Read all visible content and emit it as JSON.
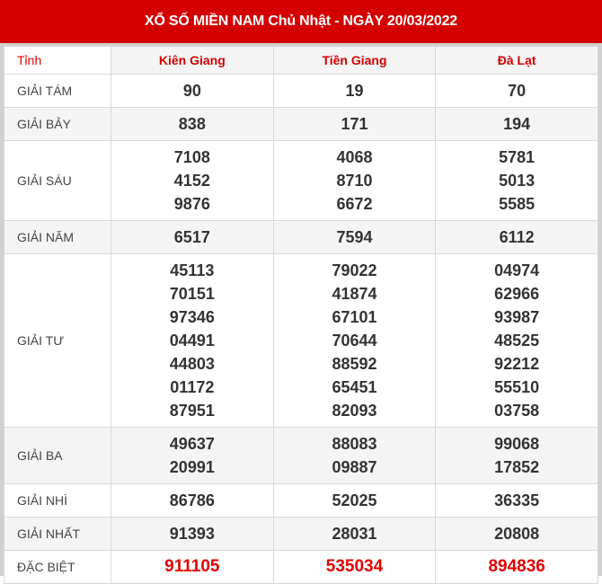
{
  "title": "XỔ SỐ MIỀN NAM Chủ Nhật - NGÀY 20/03/2022",
  "header": {
    "label": "Tỉnh",
    "provinces": [
      "Kiên Giang",
      "Tiền Giang",
      "Đà Lạt"
    ]
  },
  "colors": {
    "brand": "#d40000",
    "special": "#e00000"
  },
  "rows": [
    {
      "label": "GIẢI TÁM",
      "values": [
        [
          "90"
        ],
        [
          "19"
        ],
        [
          "70"
        ]
      ]
    },
    {
      "label": "GIẢI BẢY",
      "values": [
        [
          "838"
        ],
        [
          "171"
        ],
        [
          "194"
        ]
      ]
    },
    {
      "label": "GIẢI SÁU",
      "values": [
        [
          "7108",
          "4152",
          "9876"
        ],
        [
          "4068",
          "8710",
          "6672"
        ],
        [
          "5781",
          "5013",
          "5585"
        ]
      ]
    },
    {
      "label": "GIẢI NĂM",
      "values": [
        [
          "6517"
        ],
        [
          "7594"
        ],
        [
          "6112"
        ]
      ]
    },
    {
      "label": "GIẢI TƯ",
      "values": [
        [
          "45113",
          "70151",
          "97346",
          "04491",
          "44803",
          "01172",
          "87951"
        ],
        [
          "79022",
          "41874",
          "67101",
          "70644",
          "88592",
          "65451",
          "82093"
        ],
        [
          "04974",
          "62966",
          "93987",
          "48525",
          "92212",
          "55510",
          "03758"
        ]
      ]
    },
    {
      "label": "GIẢI BA",
      "values": [
        [
          "49637",
          "20991"
        ],
        [
          "88083",
          "09887"
        ],
        [
          "99068",
          "17852"
        ]
      ]
    },
    {
      "label": "GIẢI NHÌ",
      "values": [
        [
          "86786"
        ],
        [
          "52025"
        ],
        [
          "36335"
        ]
      ]
    },
    {
      "label": "GIẢI NHẤT",
      "values": [
        [
          "91393"
        ],
        [
          "28031"
        ],
        [
          "20808"
        ]
      ]
    },
    {
      "label": "ĐẶC BIỆT",
      "values": [
        [
          "911105"
        ],
        [
          "535034"
        ],
        [
          "894836"
        ]
      ]
    }
  ]
}
